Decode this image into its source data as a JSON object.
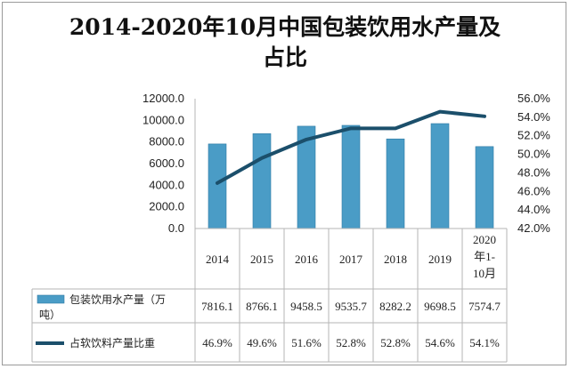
{
  "title_line1": "2014-2020年10月中国包装饮用水产量及",
  "title_line2": "占比",
  "chart_data": {
    "type": "bar",
    "categories": [
      "2014",
      "2015",
      "2016",
      "2017",
      "2018",
      "2019",
      "2020年1-10月"
    ],
    "category_label_lines": [
      [
        "2014"
      ],
      [
        "2015"
      ],
      [
        "2016"
      ],
      [
        "2017"
      ],
      [
        "2018"
      ],
      [
        "2019"
      ],
      [
        "2020",
        "年1-",
        "10月"
      ]
    ],
    "series": [
      {
        "name": "包装饮用水产量（万吨）",
        "name_lines": [
          "包装饮用水产量（万",
          "吨）"
        ],
        "type": "bar",
        "axis": "left",
        "values": [
          7816.1,
          8766.1,
          9458.5,
          9535.7,
          8282.2,
          9698.5,
          7574.7
        ],
        "value_labels": [
          "7816.1",
          "8766.1",
          "9458.5",
          "9535.7",
          "8282.2",
          "9698.5",
          "7574.7"
        ],
        "color": "#4a9cc6"
      },
      {
        "name": "占软饮料产量比重",
        "type": "line",
        "axis": "right",
        "values": [
          46.9,
          49.6,
          51.6,
          52.8,
          52.8,
          54.6,
          54.1
        ],
        "value_labels": [
          "46.9%",
          "49.6%",
          "51.6%",
          "52.8%",
          "52.8%",
          "54.6%",
          "54.1%"
        ],
        "color": "#1b4f6b"
      }
    ],
    "y_left": {
      "min": 0,
      "max": 12000,
      "step": 2000,
      "tick_labels": [
        "0.0",
        "2000.0",
        "4000.0",
        "6000.0",
        "8000.0",
        "10000.0",
        "12000.0"
      ]
    },
    "y_right": {
      "min": 42,
      "max": 56,
      "step": 2,
      "tick_labels": [
        "42.0%",
        "44.0%",
        "46.0%",
        "48.0%",
        "50.0%",
        "52.0%",
        "54.0%",
        "56.0%"
      ]
    },
    "legend": "data-table",
    "grid": false
  }
}
